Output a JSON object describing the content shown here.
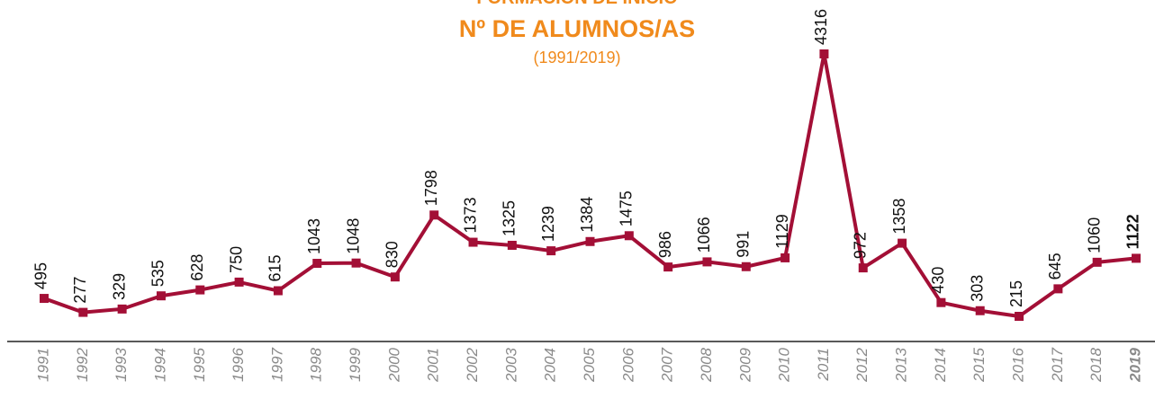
{
  "chart_data": {
    "type": "line",
    "title": "FORMACIÓN DE INICIO",
    "subtitle": "Nº DE ALUMNOS/AS",
    "period": "(1991/2019)",
    "categories": [
      "1991",
      "1992",
      "1993",
      "1994",
      "1995",
      "1996",
      "1997",
      "1998",
      "1999",
      "2000",
      "2001",
      "2002",
      "2003",
      "2004",
      "2005",
      "2006",
      "2007",
      "2008",
      "2009",
      "2010",
      "2011",
      "2012",
      "2013",
      "2014",
      "2015",
      "2016",
      "2017",
      "2018",
      "2019"
    ],
    "series": [
      {
        "color": "#a30f36",
        "values": [
          495,
          277,
          329,
          535,
          628,
          750,
          615,
          1043,
          1048,
          830,
          1798,
          1373,
          1325,
          1239,
          1384,
          1475,
          986,
          1066,
          991,
          1129,
          4316,
          972,
          1358,
          430,
          303,
          215,
          645,
          1060,
          1122
        ]
      }
    ]
  }
}
